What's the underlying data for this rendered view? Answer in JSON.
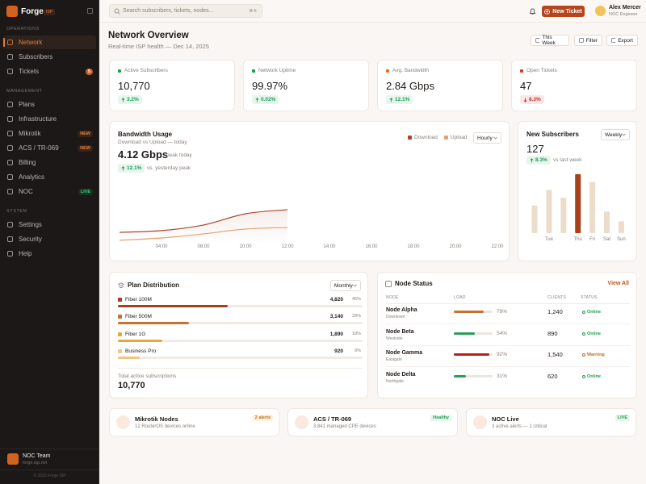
{
  "sidebar": {
    "brand": "Forge",
    "badge": "ISP",
    "sections": [
      {
        "title": "OPERATIONS",
        "items": [
          {
            "label": "Network",
            "active": true
          },
          {
            "label": "Subscribers"
          },
          {
            "label": "Tickets",
            "badge": "5",
            "badge_color": "#ffffff",
            "badge_bg": "#c8612a"
          }
        ]
      },
      {
        "title": "MANAGEMENT",
        "items": [
          {
            "label": "Plans"
          },
          {
            "label": "Infrastructure"
          },
          {
            "label": "Mikrotik",
            "badge": "NEW",
            "badge_color": "#e0803f",
            "badge_bg": "#3a2418"
          },
          {
            "label": "ACS / TR-069",
            "badge": "NEW",
            "badge_color": "#e0803f",
            "badge_bg": "#3a2418"
          },
          {
            "label": "Billing"
          },
          {
            "label": "Analytics"
          },
          {
            "label": "NOC",
            "badge": "LIVE",
            "badge_color": "#3ccf7a",
            "badge_bg": "#173322"
          }
        ]
      },
      {
        "title": "SYSTEM",
        "items": [
          {
            "label": "Settings"
          },
          {
            "label": "Security"
          },
          {
            "label": "Help"
          }
        ]
      }
    ],
    "footer": {
      "name": "NOC Team",
      "domain": "forge.isp.net",
      "copyright": "© 2025 Forge ISP"
    }
  },
  "topbar": {
    "search": "Search subscribers, tickets, nodes...",
    "shortcut": "⌘ K",
    "new_ticket": "New Ticket",
    "user": {
      "name": "Alex Mercer",
      "role": "NOC Engineer"
    }
  },
  "header": {
    "title": "Network Overview",
    "subtitle": "Real-time ISP health — Dec 14, 2025",
    "actions": [
      "This Week",
      "Filter",
      "Export"
    ]
  },
  "kpis": [
    {
      "label": "Active Subscribers",
      "value": "10,770",
      "delta": "3.2%",
      "trend": "up",
      "color": "#1f9d55"
    },
    {
      "label": "Network Uptime",
      "value": "99.97%",
      "delta": "0.02%",
      "trend": "up",
      "color": "#1f9d55"
    },
    {
      "label": "Avg. Bandwidth",
      "value": "2.84 Gbps",
      "delta": "12.1%",
      "trend": "up",
      "color": "#d4762c"
    },
    {
      "label": "Open Tickets",
      "value": "47",
      "delta": "8.3%",
      "trend": "down",
      "color": "#d23a3a"
    }
  ],
  "bandwidth": {
    "title": "Bandwidth Usage",
    "subtitle": "Download vs Upload — today",
    "peak": "4.12 Gbps",
    "peak_label": "peak today",
    "delta": "12.1%",
    "delta_label": "vs. yesterday peak",
    "interval": "Hourly",
    "chart_data": {
      "type": "line",
      "categories": [
        null,
        "04:00",
        "08:00",
        "10:00",
        "12:00",
        "14:00",
        "16:00",
        "18:00",
        "20:00",
        "22:00"
      ],
      "ylim": [
        0,
        5
      ],
      "series": [
        {
          "name": "Download",
          "color": "#a8452a",
          "values": [
            0.54,
            0.63,
            0.92,
            1.5,
            1.71,
            null,
            null,
            null,
            null,
            null
          ]
        },
        {
          "name": "Upload",
          "color": "#e0a070",
          "values": [
            0.13,
            0.25,
            0.46,
            0.71,
            0.79,
            null,
            null,
            null,
            null,
            null
          ]
        }
      ]
    }
  },
  "subscribers": {
    "title": "New Subscribers",
    "interval": "Weekly",
    "total": "127",
    "delta": "8.3%",
    "delta_label": "vs last week",
    "chart_data": {
      "type": "bar",
      "categories": [
        null,
        "Tue",
        null,
        "Thu",
        "Fri",
        "Sat",
        "Sun"
      ],
      "values": [
        14,
        22,
        18,
        30,
        26,
        11,
        6
      ],
      "ylim": [
        0,
        32
      ],
      "colors": [
        "#ecdccb",
        "#ecdccb",
        "#ecdccb",
        "#a8401a",
        "#ecdccb",
        "#ecdccb",
        "#ecdccb"
      ]
    }
  },
  "plans": {
    "title": "Plan Distribution",
    "interval": "Monthly",
    "categories": [
      "Fiber 100M",
      "Fiber 500M",
      "Fiber 1G",
      "Business Pro"
    ],
    "colors": [
      "#a2401d",
      "#c8702f",
      "#e5a93a",
      "#efc880"
    ],
    "values": [
      4820,
      3140,
      1890,
      920
    ],
    "value_labels": [
      "4,820",
      "3,140",
      "1,890",
      "920"
    ],
    "shares": [
      45,
      29,
      18,
      9
    ],
    "share_labels": [
      "45%",
      "29%",
      "18%",
      "9%"
    ],
    "total_label": "Total active subscriptions",
    "total": "10,770"
  },
  "nodes": {
    "title": "Node Status",
    "action": "View All",
    "columns": [
      "NODE",
      "LOAD",
      "CLIENTS",
      "STATUS"
    ],
    "rows": [
      {
        "name": "Node Alpha",
        "location": "Downtown",
        "load": 78,
        "load_label": "78%",
        "load_color": "#c8702f",
        "clients": "1,240",
        "status": "Online",
        "status_color": "#1f9d55"
      },
      {
        "name": "Node Beta",
        "location": "Westside",
        "load": 54,
        "load_label": "54%",
        "load_color": "#27a05a",
        "clients": "890",
        "status": "Online",
        "status_color": "#1f9d55"
      },
      {
        "name": "Node Gamma",
        "location": "Eastgate",
        "load": 92,
        "load_label": "92%",
        "load_color": "#b82020",
        "clients": "1,540",
        "status": "Warning",
        "status_color": "#c56a1a"
      },
      {
        "name": "Node Delta",
        "location": "Northgate",
        "load": 31,
        "load_label": "31%",
        "load_color": "#27a05a",
        "clients": "620",
        "status": "Online",
        "status_color": "#1f9d55"
      }
    ]
  },
  "bottom": [
    {
      "title": "Mikrotik Nodes",
      "subtitle": "12 RouterOS devices online",
      "badge": "2 alerts",
      "badge_color": "#c56a1a",
      "badge_bg": "#fdf0dc"
    },
    {
      "title": "ACS / TR-069",
      "subtitle": "3,841 managed CPE devices",
      "badge": "Healthy",
      "badge_color": "#1f9d55",
      "badge_bg": "#e6f6ec"
    },
    {
      "title": "NOC Live",
      "subtitle": "3 active alerts — 1 critical",
      "badge": "LIVE",
      "badge_color": "#1f9d55",
      "badge_bg": "#e6f6ec"
    }
  ]
}
